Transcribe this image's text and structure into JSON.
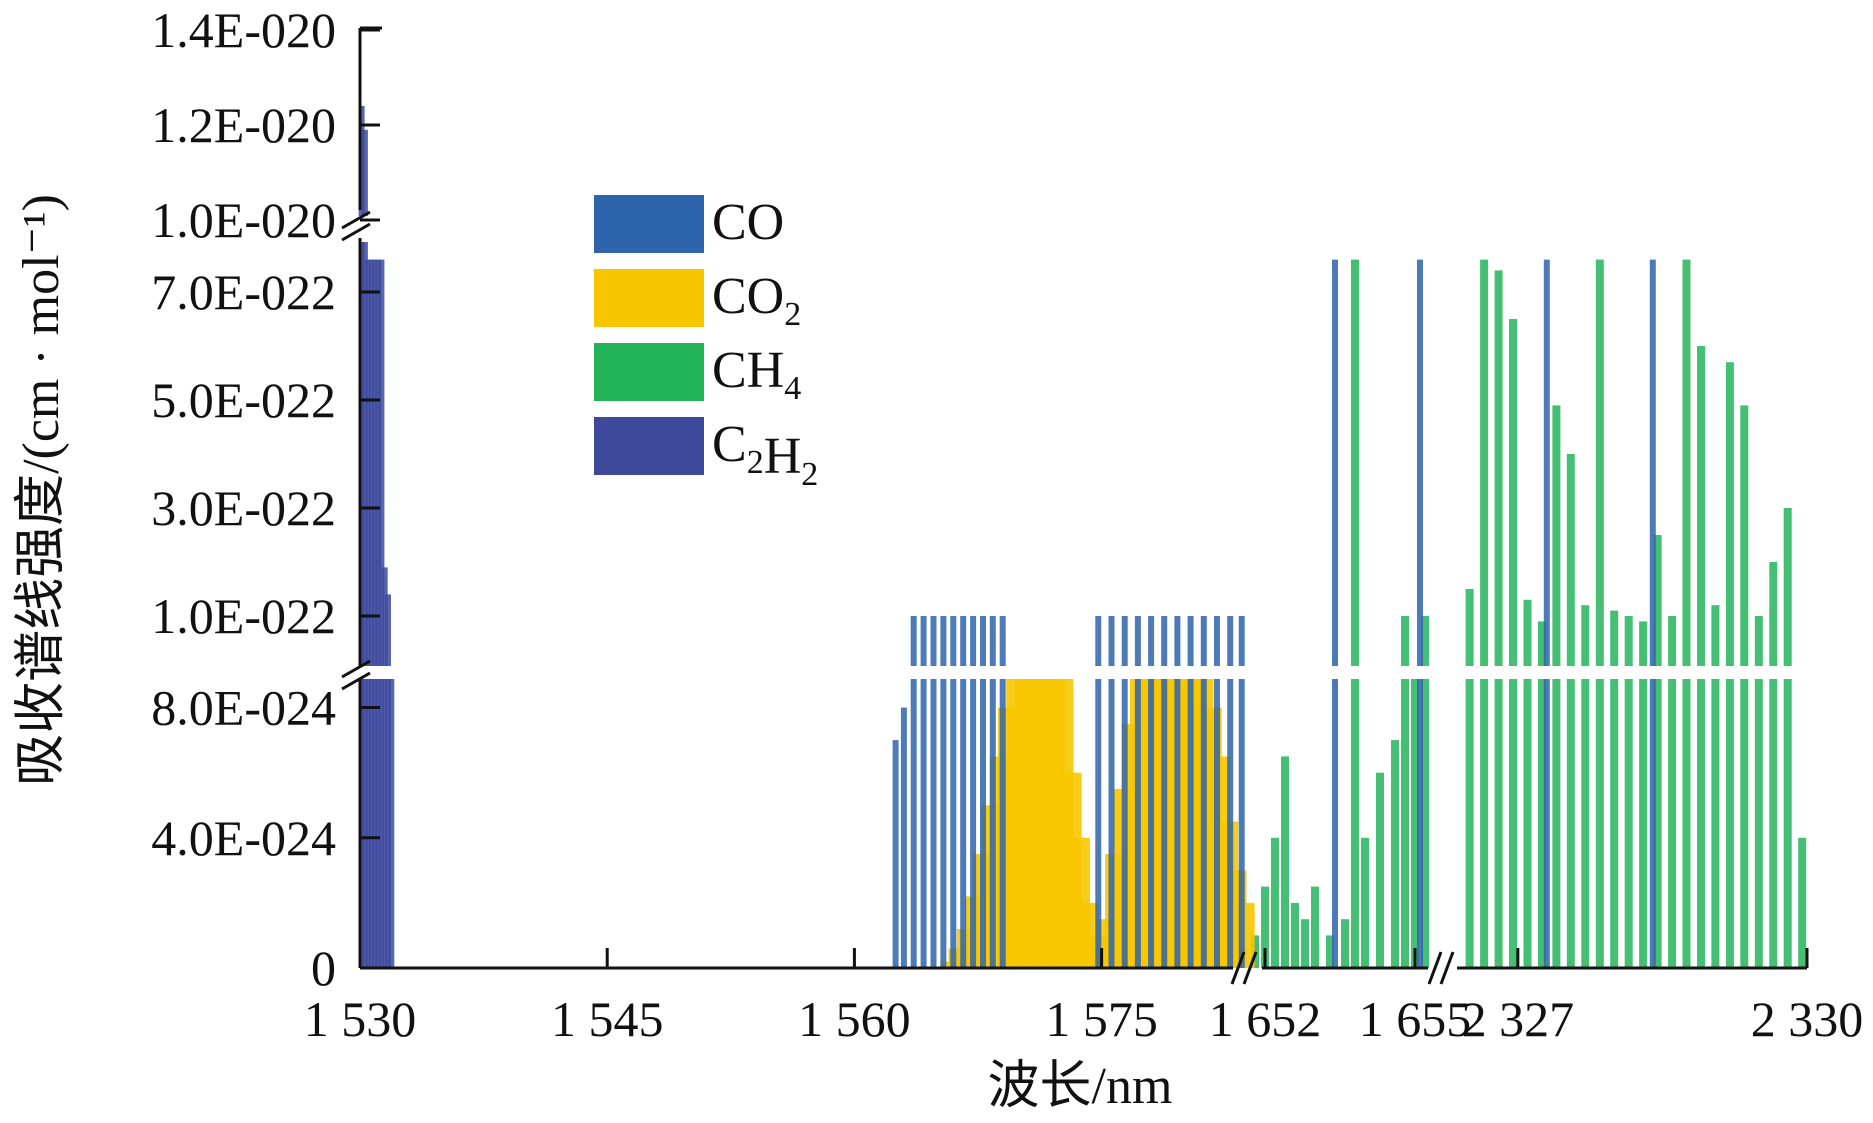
{
  "chart_data": {
    "type": "bar",
    "xlabel": "波长/nm",
    "ylabel": "吸收谱线强度/(cm · mol⁻¹)",
    "x_tick_labels": [
      "1 530",
      "1 545",
      "1 560",
      "1 575",
      "1 652",
      "1 655",
      "2 327",
      "2 330"
    ],
    "y_tick_labels": [
      "0",
      "4.0E-024",
      "8.0E-024",
      "1.0E-022",
      "3.0E-022",
      "5.0E-022",
      "7.0E-022",
      "1.0E-020",
      "1.2E-020",
      "1.4E-020"
    ],
    "x_axis_segments": [
      {
        "range": [
          1530,
          1583.7
        ],
        "ticks": [
          1530,
          1545,
          1560,
          1575
        ]
      },
      {
        "range": [
          1651.5,
          1655.3
        ],
        "ticks": [
          1652,
          1655
        ]
      },
      {
        "range": [
          2326.4,
          2330.0
        ],
        "ticks": [
          2327,
          2330
        ]
      }
    ],
    "y_axis_segments": [
      {
        "range": [
          0,
          9e-24
        ],
        "ticks": [
          0,
          4e-24,
          8e-24
        ]
      },
      {
        "range": [
          0,
          8e-22
        ],
        "ticks": [
          1e-22,
          3e-22,
          5e-22,
          7e-22
        ]
      },
      {
        "range": [
          1e-20,
          1.4e-20
        ],
        "ticks": [
          1e-20,
          1.2e-20,
          1.4e-20
        ]
      }
    ],
    "legend_position": "upper-left",
    "series": [
      {
        "name": "CO",
        "color": "#2e64ab",
        "x": [
          1562.5,
          1563.0,
          1563.6,
          1564.2,
          1564.8,
          1565.4,
          1566.0,
          1566.6,
          1567.2,
          1567.8,
          1568.4,
          1569.0,
          1574.8,
          1575.6,
          1576.4,
          1577.2,
          1578.0,
          1578.8,
          1579.6,
          1580.4,
          1581.2,
          1582.0,
          1582.8,
          1583.5,
          1653.4,
          1655.1,
          2327.3,
          2328.4
        ],
        "y": [
          7e-24,
          8e-24,
          1e-22,
          1e-22,
          1e-22,
          1e-22,
          1e-22,
          1e-22,
          1e-22,
          1e-22,
          1e-22,
          1e-22,
          1e-22,
          1e-22,
          1e-22,
          1e-22,
          1e-22,
          1e-22,
          1e-22,
          1e-22,
          1e-22,
          1e-22,
          1e-22,
          1e-22,
          7.6e-22,
          7.6e-22,
          7.6e-22,
          7.6e-22
        ]
      },
      {
        "name": "CO₂",
        "color": "#f7c600",
        "x": [
          1566.0,
          1566.5,
          1567.0,
          1567.5,
          1568.0,
          1568.5,
          1569.0,
          1569.5,
          1570.0,
          1570.5,
          1571.0,
          1571.5,
          1572.0,
          1572.5,
          1573.0,
          1573.5,
          1574.0,
          1574.5,
          1575.0,
          1575.5,
          1576.0,
          1576.5,
          1577.0,
          1577.5,
          1578.0,
          1578.5,
          1579.0,
          1579.5,
          1580.0,
          1580.5,
          1581.0,
          1581.5,
          1582.0,
          1582.5,
          1583.0,
          1583.5
        ],
        "y": [
          2e-25,
          6e-25,
          1.2e-24,
          2.2e-24,
          3.5e-24,
          5e-24,
          6.5e-24,
          8e-24,
          9e-24,
          9e-24,
          9e-24,
          9e-24,
          9e-24,
          9e-24,
          6e-24,
          4e-24,
          2e-24,
          1e-24,
          5e-25,
          1.5e-24,
          3.5e-24,
          5.5e-24,
          7.5e-24,
          9e-24,
          9e-24,
          9e-24,
          9e-24,
          9e-24,
          9e-24,
          9e-24,
          9e-24,
          8e-24,
          6.5e-24,
          4.5e-24,
          3e-24,
          2e-24
        ]
      },
      {
        "name": "CH₄",
        "color": "#23b45a",
        "x": [
          1651.8,
          1652.0,
          1652.2,
          1652.4,
          1652.6,
          1652.8,
          1653.0,
          1653.3,
          1653.6,
          1653.8,
          1654.0,
          1654.3,
          1654.6,
          1654.8,
          1655.0,
          1655.2,
          2326.5,
          2326.65,
          2326.8,
          2326.95,
          2327.1,
          2327.25,
          2327.4,
          2327.55,
          2327.7,
          2327.85,
          2328.0,
          2328.15,
          2328.3,
          2328.45,
          2328.6,
          2328.75,
          2328.9,
          2329.05,
          2329.2,
          2329.35,
          2329.5,
          2329.65,
          2329.8,
          2329.95
        ],
        "y": [
          1e-24,
          2.5e-24,
          4e-24,
          6.5e-24,
          2e-24,
          1.5e-24,
          2.5e-24,
          1e-24,
          1.5e-24,
          7.6e-22,
          4e-24,
          6e-24,
          7e-24,
          1e-22,
          9e-24,
          1e-22,
          1.5e-22,
          7.6e-22,
          7.4e-22,
          6.5e-22,
          1.3e-22,
          9e-23,
          4.9e-22,
          4e-22,
          1.2e-22,
          7.6e-22,
          1.1e-22,
          1e-22,
          9e-23,
          2.5e-22,
          1e-22,
          7.6e-22,
          6e-22,
          1.2e-22,
          5.7e-22,
          4.9e-22,
          1e-22,
          2e-22,
          3e-22,
          4e-24
        ]
      },
      {
        "name": "C₂H₂",
        "color": "#3d4a9c",
        "x": [
          1530.1,
          1530.3,
          1530.5,
          1530.7,
          1530.9,
          1531.1,
          1531.3,
          1531.5,
          1531.7,
          1531.9
        ],
        "y": [
          1.24e-20,
          1.19e-20,
          7.6e-22,
          7.6e-22,
          7.6e-22,
          7.6e-22,
          7.6e-22,
          1.9e-22,
          1.4e-22,
          9e-24
        ]
      }
    ]
  }
}
